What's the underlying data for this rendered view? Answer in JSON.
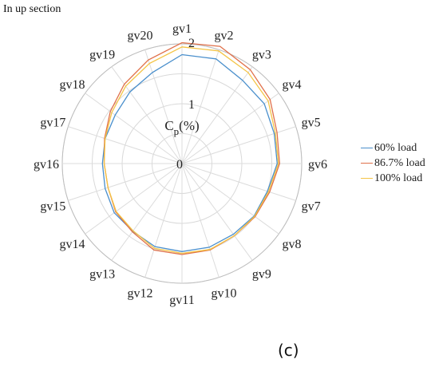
{
  "header": {
    "section_title": "In up section"
  },
  "panel_label": "(c)",
  "chart_data": {
    "type": "radar",
    "categories": [
      "gv1",
      "gv2",
      "gv3",
      "gv4",
      "gv5",
      "gv6",
      "gv7",
      "gv8",
      "gv9",
      "gv10",
      "gv11",
      "gv12",
      "gv13",
      "gv14",
      "gv15",
      "gv16",
      "gv17",
      "gv18",
      "gv19",
      "gv20"
    ],
    "radial_ticks": [
      "0",
      "1",
      "2"
    ],
    "radial_range": [
      0,
      2
    ],
    "radial_label": "C",
    "radial_label_sub": "p",
    "radial_label_unit": "(%)",
    "grid": true,
    "legend_position": "right",
    "series": [
      {
        "name": "60% load",
        "color": "#4a8fcc",
        "values": [
          1.82,
          1.84,
          1.72,
          1.7,
          1.62,
          1.59,
          1.5,
          1.49,
          1.46,
          1.47,
          1.47,
          1.46,
          1.4,
          1.4,
          1.35,
          1.33,
          1.35,
          1.38,
          1.48,
          1.6
        ]
      },
      {
        "name": "86.7% load",
        "color": "#e0704a",
        "values": [
          2.02,
          2.06,
          1.94,
          1.82,
          1.67,
          1.63,
          1.54,
          1.51,
          1.49,
          1.52,
          1.52,
          1.52,
          1.41,
          1.37,
          1.3,
          1.3,
          1.36,
          1.48,
          1.64,
          1.82
        ]
      },
      {
        "name": "100% load",
        "color": "#f4c445",
        "values": [
          1.95,
          1.98,
          1.88,
          1.78,
          1.64,
          1.61,
          1.52,
          1.5,
          1.49,
          1.51,
          1.5,
          1.49,
          1.39,
          1.36,
          1.3,
          1.3,
          1.35,
          1.45,
          1.6,
          1.76
        ]
      }
    ]
  }
}
